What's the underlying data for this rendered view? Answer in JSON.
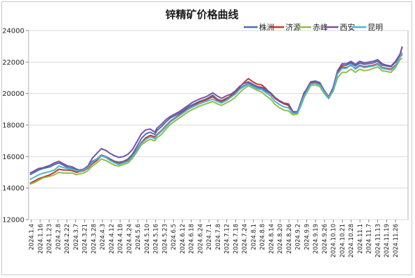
{
  "chart_data": {
    "type": "line",
    "title": "锌精矿价格曲线",
    "xlabel": "",
    "ylabel": "",
    "ylim": [
      12000,
      24000
    ],
    "yticks": [
      "12000",
      "14000",
      "16000",
      "18000",
      "20000",
      "22000",
      "24000"
    ],
    "grid": "horizontal",
    "legend_position": "top-right",
    "x_labels": [
      "2024.1.4",
      "2024.1.16",
      "2024.1.23",
      "2024.2.8",
      "2024.2.22",
      "2024.3.7",
      "2024.3.21",
      "2024.3.28",
      "2024.4.3",
      "2024.4.12",
      "2024.4.18",
      "2024.4.24",
      "2024.5.6",
      "2024.5.10",
      "2024.5.16",
      "2024.5.23",
      "2024.6.5",
      "2024.6.12",
      "2024.6.18",
      "2024.6.24",
      "2024.7.1",
      "2024.7.8",
      "2024.7.12",
      "2024.7.18",
      "2024.7.24",
      "2024.8.1",
      "2024.8.8",
      "2024.8.14",
      "2024.8.20",
      "2024.8.26",
      "2024.9.2",
      "2024.9.9",
      "2024.9.19",
      "2024.9.26",
      "2024.10.10",
      "2024.10.21",
      "2024.10.28",
      "2024.11.1",
      "2024.11.7",
      "2024.11.13",
      "2024.11.19",
      "2024.11.26"
    ],
    "x_keypoints": [
      0,
      2,
      4,
      6,
      9,
      11,
      13,
      15,
      17,
      19,
      21,
      22,
      24,
      26,
      28,
      30,
      32,
      34,
      36,
      38,
      40,
      42,
      44,
      46,
      48,
      50,
      52,
      54,
      56,
      57,
      59,
      61,
      63,
      65,
      67,
      69,
      71,
      73,
      76,
      79,
      82,
      84,
      86,
      88,
      90,
      92,
      94,
      96,
      98,
      100,
      102,
      104,
      106,
      108,
      110,
      112,
      114,
      116,
      118,
      120,
      122,
      123,
      124,
      125,
      126,
      128,
      130,
      132,
      134,
      136,
      138,
      140,
      142,
      144,
      146,
      148,
      150,
      152,
      154,
      156,
      158,
      160,
      162,
      164,
      166,
      167
    ],
    "series": [
      {
        "name": "株洲",
        "color": "#4a6fb5",
        "values": [
          14850,
          15000,
          15150,
          15250,
          15350,
          15500,
          15600,
          15450,
          15300,
          15250,
          15150,
          15100,
          15150,
          15300,
          15700,
          15850,
          16100,
          16000,
          15850,
          15700,
          15650,
          15700,
          15850,
          16150,
          16650,
          17150,
          17450,
          17550,
          17400,
          17650,
          17900,
          18200,
          18450,
          18600,
          18750,
          18950,
          19150,
          19300,
          19500,
          19650,
          19900,
          19650,
          19550,
          19700,
          19800,
          20000,
          20300,
          20500,
          20650,
          20500,
          20350,
          20350,
          20150,
          20000,
          19700,
          19500,
          19350,
          19300,
          18800,
          18800,
          19600,
          19950,
          20200,
          20500,
          20750,
          20800,
          20700,
          20200,
          19800,
          20350,
          21400,
          21800,
          21800,
          21950,
          21750,
          21950,
          21850,
          21900,
          21950,
          22050,
          21800,
          21750,
          21700,
          22000,
          22450,
          23000
        ]
      },
      {
        "name": "济源",
        "color": "#c0392b",
        "values": [
          14300,
          14450,
          14600,
          14700,
          14850,
          15000,
          15200,
          15150,
          15150,
          15100,
          15000,
          15050,
          15100,
          15250,
          15550,
          15750,
          16050,
          15950,
          15800,
          15650,
          15550,
          15650,
          15750,
          16050,
          16450,
          16900,
          17200,
          17350,
          17250,
          17400,
          17650,
          17950,
          18250,
          18450,
          18650,
          18850,
          19050,
          19200,
          19450,
          19600,
          19800,
          19600,
          19500,
          19650,
          19850,
          20100,
          20400,
          20700,
          20950,
          20750,
          20600,
          20550,
          20300,
          20000,
          19700,
          19500,
          19350,
          19250,
          18750,
          18750,
          19500,
          19900,
          20150,
          20400,
          20650,
          20700,
          20600,
          20150,
          19800,
          20350,
          21300,
          21700,
          21650,
          21800,
          21600,
          21800,
          21700,
          21750,
          21800,
          21900,
          21650,
          21600,
          21550,
          21800,
          22300,
          22500
        ]
      },
      {
        "name": "赤峰",
        "color": "#8fbf45",
        "values": [
          14250,
          14350,
          14500,
          14650,
          14750,
          14850,
          15000,
          14950,
          14950,
          14950,
          14850,
          14900,
          14950,
          15100,
          15400,
          15600,
          15850,
          15750,
          15600,
          15450,
          15400,
          15500,
          15600,
          15900,
          16300,
          16750,
          16950,
          17100,
          17000,
          17200,
          17400,
          17750,
          18050,
          18250,
          18450,
          18650,
          18850,
          19000,
          19200,
          19350,
          19500,
          19350,
          19250,
          19400,
          19550,
          19750,
          20050,
          20300,
          20500,
          20350,
          20200,
          20100,
          19850,
          19650,
          19300,
          19100,
          18950,
          18900,
          18650,
          18700,
          19350,
          19750,
          20000,
          20250,
          20500,
          20550,
          20450,
          20000,
          19700,
          20150,
          21000,
          21350,
          21350,
          21550,
          21350,
          21550,
          21450,
          21500,
          21600,
          21700,
          21450,
          21400,
          21350,
          21650,
          22150,
          22250
        ]
      },
      {
        "name": "西安",
        "color": "#7b4fa0",
        "values": [
          14950,
          15100,
          15250,
          15300,
          15450,
          15600,
          15700,
          15550,
          15400,
          15350,
          15200,
          15150,
          15200,
          15400,
          15900,
          16200,
          16500,
          16400,
          16200,
          16050,
          15950,
          16000,
          16150,
          16450,
          16950,
          17450,
          17700,
          17750,
          17550,
          17800,
          18050,
          18350,
          18550,
          18700,
          18850,
          19050,
          19250,
          19450,
          19650,
          19800,
          20050,
          19850,
          19700,
          19850,
          19950,
          20150,
          20450,
          20650,
          20750,
          20600,
          20450,
          20400,
          20250,
          20050,
          19750,
          19550,
          19400,
          19350,
          18850,
          18850,
          19650,
          20050,
          20250,
          20500,
          20750,
          20750,
          20650,
          20150,
          19700,
          20400,
          21450,
          21900,
          21900,
          22050,
          21850,
          22050,
          21950,
          22000,
          22050,
          22150,
          21900,
          21800,
          21750,
          22050,
          22500,
          22950
        ]
      },
      {
        "name": "昆明",
        "color": "#4ab5d8",
        "values": [
          14550,
          14700,
          14850,
          14950,
          15050,
          15150,
          15400,
          15300,
          15250,
          15200,
          15100,
          15100,
          15150,
          15300,
          15650,
          15850,
          16050,
          15950,
          15750,
          15600,
          15500,
          15600,
          15700,
          16000,
          16400,
          16850,
          17100,
          17250,
          17150,
          17350,
          17600,
          17900,
          18200,
          18400,
          18600,
          18800,
          19000,
          19150,
          19350,
          19500,
          19650,
          19500,
          19400,
          19550,
          19750,
          19950,
          20250,
          20450,
          20600,
          20450,
          20300,
          20250,
          20050,
          19850,
          19500,
          19300,
          19150,
          19100,
          18750,
          18750,
          19500,
          19850,
          20100,
          20350,
          20600,
          20650,
          20550,
          20100,
          19750,
          20200,
          21250,
          21600,
          21600,
          21850,
          21550,
          21750,
          21650,
          21700,
          21750,
          21850,
          21600,
          21550,
          21500,
          21750,
          22300,
          22600
        ]
      }
    ]
  }
}
